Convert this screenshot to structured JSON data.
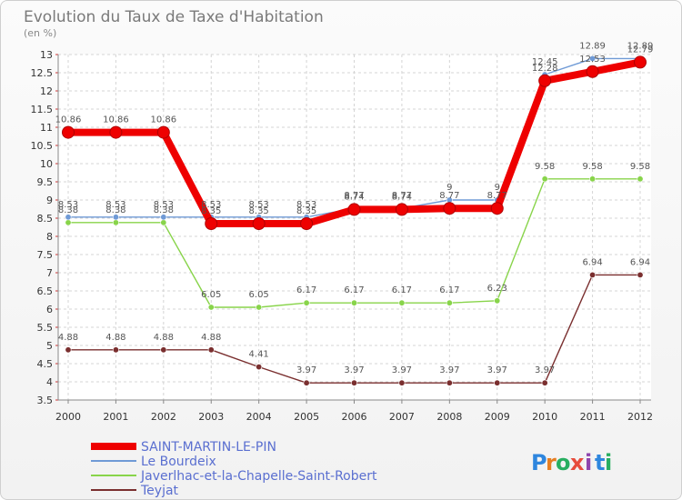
{
  "chart_data": {
    "type": "line",
    "title": "Evolution du Taux de Taxe d'Habitation",
    "subtitle": "(en %)",
    "xlabel": "",
    "ylabel": "",
    "x": [
      "2000",
      "2001",
      "2002",
      "2003",
      "2004",
      "2005",
      "2006",
      "2007",
      "2008",
      "2009",
      "2010",
      "2011",
      "2012"
    ],
    "ylim": [
      3.5,
      13
    ],
    "yticks": [
      "3.5",
      "4",
      "4.5",
      "5",
      "5.5",
      "6",
      "6.5",
      "7",
      "7.5",
      "8",
      "8.5",
      "9",
      "9.5",
      "10",
      "10.5",
      "11",
      "11.5",
      "12",
      "12.5",
      "13"
    ],
    "grid": true,
    "legend_position": "bottom-left",
    "series": [
      {
        "name": "SAINT-MARTIN-LE-PIN",
        "color": "#ee0000",
        "values": [
          10.86,
          10.86,
          10.86,
          8.35,
          8.35,
          8.35,
          8.74,
          8.74,
          8.77,
          8.77,
          12.28,
          12.53,
          12.79
        ],
        "labels": [
          "10.86",
          "10.86",
          "10.86",
          "8.35",
          "8.35",
          "8.35",
          "8.74",
          "8.74",
          "8.77",
          "8.77",
          "12.28",
          "12.53",
          "12.79"
        ]
      },
      {
        "name": "Le Bourdeix",
        "color": "#6f9ad6",
        "values": [
          8.53,
          8.53,
          8.53,
          8.53,
          8.53,
          8.53,
          8.77,
          8.77,
          9,
          9,
          12.45,
          12.89,
          12.89
        ],
        "labels": [
          "8.53",
          "8.53",
          "8.53",
          "8.53",
          "8.53",
          "8.53",
          "8.77",
          "8.77",
          "9",
          "9",
          "12.45",
          "12.89",
          "12.89"
        ]
      },
      {
        "name": "Javerlhac-et-la-Chapelle-Saint-Robert",
        "color": "#88d44a",
        "values": [
          8.38,
          8.38,
          8.38,
          6.05,
          6.05,
          6.17,
          6.17,
          6.17,
          6.17,
          6.23,
          9.58,
          9.58,
          9.58
        ],
        "labels": [
          "8.38",
          "8.38",
          "8.38",
          "6.05",
          "6.05",
          "6.17",
          "6.17",
          "6.17",
          "6.17",
          "6.23",
          "9.58",
          "9.58",
          "9.58"
        ]
      },
      {
        "name": "Teyjat",
        "color": "#7a2f2f",
        "values": [
          4.88,
          4.88,
          4.88,
          4.88,
          4.41,
          3.97,
          3.97,
          3.97,
          3.97,
          3.97,
          3.97,
          6.94,
          6.94
        ],
        "labels": [
          "4.88",
          "4.88",
          "4.88",
          "4.88",
          "4.41",
          "3.97",
          "3.97",
          "3.97",
          "3.97",
          "3.97",
          "3.97",
          "6.94",
          "6.94"
        ]
      }
    ]
  },
  "brand": {
    "letters": [
      "P",
      "r",
      "o",
      "x",
      "i",
      "t",
      "i"
    ],
    "colors": [
      "#2e86de",
      "#e67e22",
      "#27ae60",
      "#e74c3c",
      "#8e44ad",
      "#2e86de",
      "#27ae60"
    ]
  }
}
